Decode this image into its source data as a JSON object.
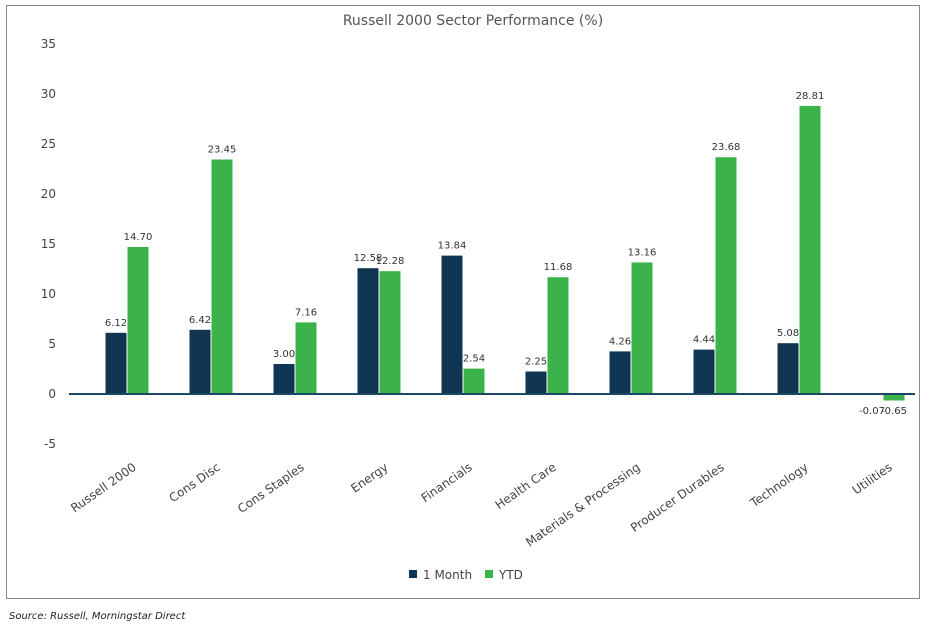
{
  "chart_data": {
    "type": "bar",
    "title": "Russell 2000 Sector Performance (%)",
    "xlabel": "",
    "ylabel": "",
    "categories": [
      "Russell 2000",
      "Cons Disc",
      "Cons Staples",
      "Energy",
      "Financials",
      "Health Care",
      "Materials & Processing",
      "Producer Durables",
      "Technology",
      "Utilities"
    ],
    "series": [
      {
        "name": "1 Month",
        "color": "#0f3553",
        "values": [
          6.12,
          6.42,
          3.0,
          12.58,
          13.84,
          2.25,
          4.26,
          4.44,
          5.08,
          -0.07
        ],
        "labels": [
          "6.12",
          "6.42",
          "3.00",
          "12.58",
          "13.84",
          "2.25",
          "4.26",
          "4.44",
          "5.08",
          "-0.07"
        ]
      },
      {
        "name": "YTD",
        "color": "#3cb34a",
        "values": [
          14.7,
          23.45,
          7.16,
          12.28,
          2.54,
          11.68,
          13.16,
          23.68,
          28.81,
          -0.65
        ],
        "labels": [
          "14.70",
          "23.45",
          "7.16",
          "12.28",
          "2.54",
          "11.68",
          "13.16",
          "23.68",
          "28.81",
          "-0.65"
        ]
      }
    ],
    "ylim": [
      -5,
      35
    ],
    "yticks": [
      -5,
      0,
      5,
      10,
      15,
      20,
      25,
      30,
      35
    ],
    "grid": false,
    "legend_position": "bottom"
  },
  "source": "Source: Russell, Morningstar Direct"
}
